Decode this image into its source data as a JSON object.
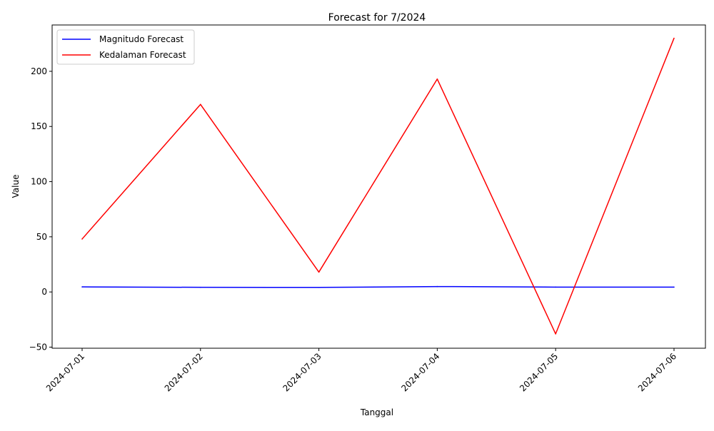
{
  "chart_data": {
    "type": "line",
    "title": "Forecast for 7/2024",
    "xlabel": "Tanggal",
    "ylabel": "Value",
    "x": [
      "2024-07-01",
      "2024-07-02",
      "2024-07-03",
      "2024-07-04",
      "2024-07-05",
      "2024-07-06"
    ],
    "ylim": [
      -51,
      242
    ],
    "yticks": [
      -50,
      0,
      50,
      100,
      150,
      200
    ],
    "grid": false,
    "legend_position": "top-left",
    "series": [
      {
        "name": "Magnitudo Forecast",
        "color": "#0000ff",
        "values": [
          4.6,
          4.2,
          4.1,
          4.9,
          4.4,
          4.4
        ]
      },
      {
        "name": "Kedalaman Forecast",
        "color": "#ff0000",
        "values": [
          48,
          170,
          18,
          193,
          -38,
          230
        ]
      }
    ]
  }
}
